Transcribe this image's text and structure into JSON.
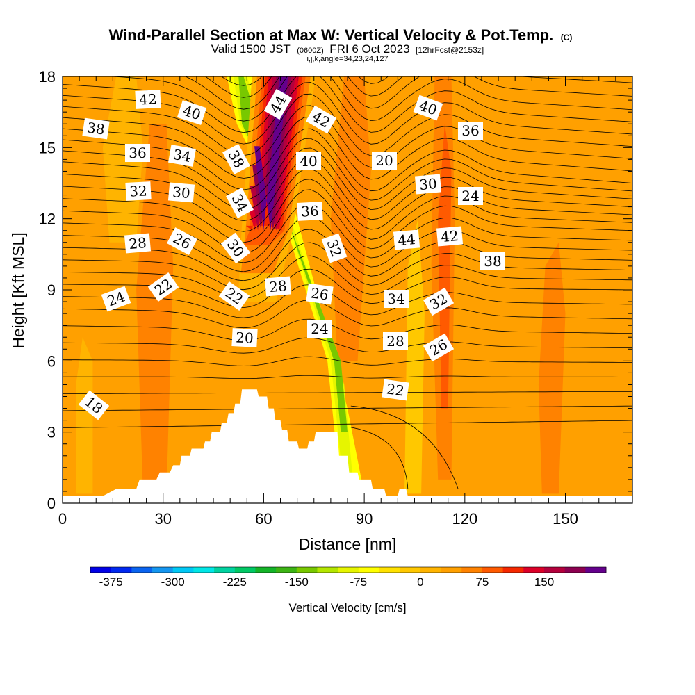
{
  "title": {
    "main": "Wind-Parallel Section at Max W: Vertical Velocity & Pot.Temp.",
    "main_mark": "(C)",
    "valid_prefix": "Valid 1500 JST",
    "valid_zulu": "(0600Z)",
    "valid_date": "FRI 6 Oct 2023",
    "forecast_tag": "[12hrFcst@2153z]",
    "indices": "i,j,k,angle=34,23,24,127"
  },
  "chart_data": {
    "type": "contour_cross_section",
    "xlabel": "Distance [nm]",
    "ylabel": "Height [Kft MSL]",
    "xlim": [
      0,
      170
    ],
    "ylim": [
      0,
      18
    ],
    "x_ticks": [
      "0",
      "30",
      "60",
      "90",
      "120",
      "150"
    ],
    "y_ticks": [
      "0",
      "3",
      "6",
      "9",
      "12",
      "15",
      "18"
    ],
    "shaded_field": "Vertical Velocity [cm/s]",
    "colorbar": {
      "label": "Vertical Velocity [cm/s]",
      "min": -400,
      "step": 25,
      "tick_labels": [
        "-375",
        "-300",
        "-225",
        "-150",
        "-75",
        "0",
        "75",
        "150"
      ],
      "colors": [
        "#0000e6",
        "#0028f0",
        "#0a64f0",
        "#1496f0",
        "#00c8f5",
        "#00e6e6",
        "#00d2a0",
        "#00c864",
        "#14b428",
        "#3cb414",
        "#78c800",
        "#b4e600",
        "#e6f500",
        "#ffff00",
        "#ffe100",
        "#ffc800",
        "#ffb400",
        "#ffa000",
        "#ff8200",
        "#ff5a00",
        "#f52800",
        "#dc0028",
        "#b4003c",
        "#8c0050",
        "#64008c"
      ]
    },
    "contour_field": "Potential Temperature [C]",
    "contour_label_values": [
      "42",
      "40",
      "38",
      "36",
      "34",
      "32",
      "30",
      "28",
      "26",
      "24",
      "22",
      "20",
      "18",
      "44",
      "42",
      "40",
      "38",
      "36",
      "34",
      "32",
      "30",
      "28",
      "26",
      "24",
      "22",
      "20",
      "40",
      "36",
      "30",
      "24",
      "44",
      "42",
      "38",
      "34",
      "32",
      "28",
      "26",
      "22"
    ],
    "theta_profile_left": [
      18,
      24,
      30,
      36,
      42
    ],
    "theta_profile_right": [
      18,
      26,
      32,
      38,
      44
    ],
    "vertical_velocity_features": [
      {
        "name": "updraft",
        "x_nm": 63,
        "peak_cm_s": 175
      },
      {
        "name": "downdraft band",
        "x_nm": 85,
        "peak_cm_s": -130
      }
    ]
  }
}
